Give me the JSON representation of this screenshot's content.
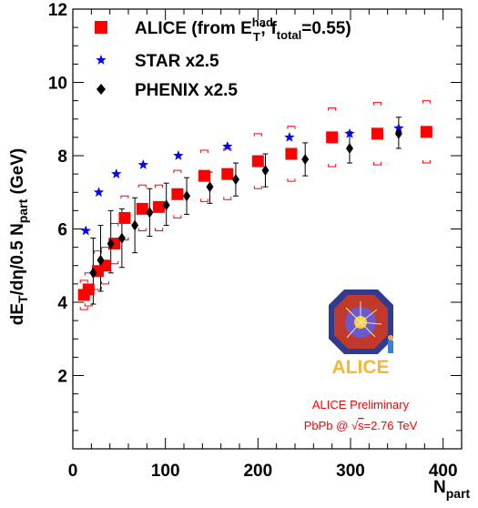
{
  "chart_data": {
    "type": "scatter",
    "x_axis": {
      "label_main": "N",
      "label_sub": "part",
      "range": [
        0,
        420
      ],
      "ticks": [
        0,
        100,
        200,
        300,
        400
      ],
      "tick_labels": [
        "0",
        "100",
        "200",
        "300",
        "400"
      ]
    },
    "y_axis": {
      "label_main": "dE",
      "label_sub1": "T",
      "label_mid": "/dη/0.5 N",
      "label_sub2": "part",
      "label_end": " (GeV)",
      "range": [
        0,
        12
      ],
      "ticks": [
        2,
        4,
        6,
        8,
        10,
        12
      ],
      "tick_labels": [
        "2",
        "4",
        "6",
        "8",
        "10",
        "12"
      ]
    },
    "legend_position": "top-left",
    "legend": [
      {
        "key": "alice",
        "marker": "square",
        "color": "#ff0000",
        "text_a": "ALICE (from E",
        "sup": "had",
        "sub": "T",
        "text_b": "; f",
        "sub2": "total",
        "text_c": "=0.55)"
      },
      {
        "key": "star",
        "marker": "star",
        "color": "#0000ff",
        "text_a": "STAR x2.5"
      },
      {
        "key": "phenix",
        "marker": "diamond",
        "color": "#000000",
        "text_a": "PHENIX x2.5"
      }
    ],
    "series": [
      {
        "name": "ALICE (from E_T^had; f_total=0.55)",
        "marker": "square",
        "color": "#ff0000",
        "points": [
          {
            "x": 12,
            "y": 4.2,
            "syst_lo": 3.8,
            "syst_hi": 4.6
          },
          {
            "x": 17,
            "y": 4.35,
            "syst_lo": 3.9,
            "syst_hi": 4.8
          },
          {
            "x": 27,
            "y": 4.85,
            "syst_lo": 4.35,
            "syst_hi": 5.4
          },
          {
            "x": 35,
            "y": 5.0,
            "syst_lo": 4.5,
            "syst_hi": 5.5
          },
          {
            "x": 45,
            "y": 5.6,
            "syst_lo": 5.05,
            "syst_hi": 6.15
          },
          {
            "x": 56,
            "y": 6.3,
            "syst_lo": 5.7,
            "syst_hi": 6.9
          },
          {
            "x": 75,
            "y": 6.55,
            "syst_lo": 5.95,
            "syst_hi": 7.2
          },
          {
            "x": 93,
            "y": 6.6,
            "syst_lo": 5.95,
            "syst_hi": 7.2
          },
          {
            "x": 113,
            "y": 6.95,
            "syst_lo": 6.3,
            "syst_hi": 7.6
          },
          {
            "x": 142,
            "y": 7.45,
            "syst_lo": 6.75,
            "syst_hi": 8.15
          },
          {
            "x": 167,
            "y": 7.5,
            "syst_lo": 6.8,
            "syst_hi": 8.2
          },
          {
            "x": 200,
            "y": 7.85,
            "syst_lo": 7.1,
            "syst_hi": 8.6
          },
          {
            "x": 236,
            "y": 8.05,
            "syst_lo": 7.3,
            "syst_hi": 8.8
          },
          {
            "x": 280,
            "y": 8.5,
            "syst_lo": 7.7,
            "syst_hi": 9.3
          },
          {
            "x": 329,
            "y": 8.6,
            "syst_lo": 7.75,
            "syst_hi": 9.45
          },
          {
            "x": 382,
            "y": 8.65,
            "syst_lo": 7.8,
            "syst_hi": 9.5
          }
        ]
      },
      {
        "name": "STAR x2.5",
        "marker": "star",
        "color": "#0000ff",
        "points": [
          {
            "x": 14,
            "y": 5.95
          },
          {
            "x": 28,
            "y": 7.0
          },
          {
            "x": 47,
            "y": 7.5
          },
          {
            "x": 76,
            "y": 7.75
          },
          {
            "x": 114,
            "y": 8.0
          },
          {
            "x": 167,
            "y": 8.25
          },
          {
            "x": 234,
            "y": 8.5
          },
          {
            "x": 299,
            "y": 8.6
          },
          {
            "x": 352,
            "y": 8.75
          }
        ]
      },
      {
        "name": "PHENIX x2.5",
        "marker": "diamond",
        "color": "#000000",
        "points": [
          {
            "x": 22,
            "y": 4.8,
            "err_lo": 3.95,
            "err_hi": 5.75
          },
          {
            "x": 30,
            "y": 5.15,
            "err_lo": 4.3,
            "err_hi": 6.1
          },
          {
            "x": 41,
            "y": 5.6,
            "err_lo": 4.8,
            "err_hi": 6.5
          },
          {
            "x": 53,
            "y": 5.75,
            "err_lo": 4.95,
            "err_hi": 6.55
          },
          {
            "x": 67,
            "y": 6.1,
            "err_lo": 5.35,
            "err_hi": 6.85
          },
          {
            "x": 83,
            "y": 6.45,
            "err_lo": 5.8,
            "err_hi": 7.1
          },
          {
            "x": 101,
            "y": 6.65,
            "err_lo": 6.1,
            "err_hi": 7.25
          },
          {
            "x": 123,
            "y": 6.9,
            "err_lo": 6.4,
            "err_hi": 7.4
          },
          {
            "x": 148,
            "y": 7.15,
            "err_lo": 6.7,
            "err_hi": 7.55
          },
          {
            "x": 176,
            "y": 7.35,
            "err_lo": 6.9,
            "err_hi": 7.8
          },
          {
            "x": 208,
            "y": 7.6,
            "err_lo": 7.15,
            "err_hi": 8.05
          },
          {
            "x": 251,
            "y": 7.9,
            "err_lo": 7.45,
            "err_hi": 8.35
          },
          {
            "x": 299,
            "y": 8.2,
            "err_lo": 7.8,
            "err_hi": 8.65
          },
          {
            "x": 352,
            "y": 8.6,
            "err_lo": 8.2,
            "err_hi": 9.05
          }
        ]
      }
    ],
    "annotations": {
      "logo_text": "ALICE",
      "preliminary": "ALICE Preliminary",
      "collision_prefix": "PbPb @ ",
      "sqrt_symbol": "√",
      "collision_var": "s",
      "collision_suffix": "=2.76 TeV",
      "annotation_color": "#ff0000",
      "logo_color": "#f7b733"
    }
  }
}
